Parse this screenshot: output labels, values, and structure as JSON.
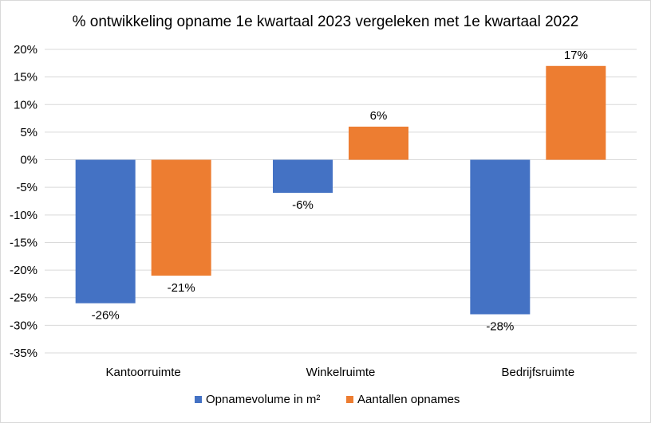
{
  "chart_data": {
    "type": "bar",
    "title": "% ontwikkeling opname 1e kwartaal 2023 vergeleken met 1e kwartaal 2022",
    "categories": [
      "Kantoorruimte",
      "Winkelruimte",
      "Bedrijfsruimte"
    ],
    "series": [
      {
        "name": "Opnamevolume in m²",
        "values": [
          -26,
          -6,
          -28
        ],
        "color": "#4472C4"
      },
      {
        "name": "Aantallen opnames",
        "values": [
          -21,
          6,
          17
        ],
        "color": "#ED7D31"
      }
    ],
    "data_labels": [
      [
        "-26%",
        "-6%",
        "-28%"
      ],
      [
        "-21%",
        "6%",
        "17%"
      ]
    ],
    "ylim": [
      -35,
      20
    ],
    "y_ticks": [
      20,
      15,
      10,
      5,
      0,
      -5,
      -10,
      -15,
      -20,
      -25,
      -30,
      -35
    ],
    "y_tick_labels": [
      "20%",
      "15%",
      "10%",
      "5%",
      "0%",
      "-5%",
      "-10%",
      "-15%",
      "-20%",
      "-25%",
      "-30%",
      "-35%"
    ],
    "grid": true,
    "legend_position": "bottom",
    "xlabel": "",
    "ylabel": ""
  }
}
